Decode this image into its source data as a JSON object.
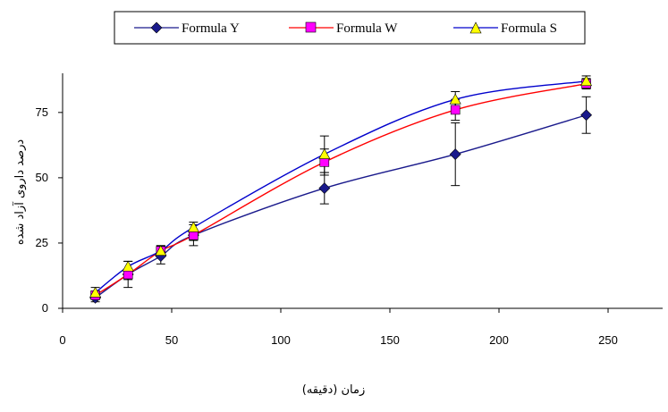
{
  "chart_data": {
    "type": "line",
    "title": "",
    "xlabel": "زمان (دقیقه)",
    "ylabel": "درصد داروی آزاد شده",
    "xlim": [
      0,
      275
    ],
    "ylim": [
      0,
      90
    ],
    "xticks": [
      0,
      50,
      100,
      150,
      200,
      250
    ],
    "yticks": [
      0,
      25,
      50,
      75
    ],
    "x_tick_labels": [
      "0",
      "50",
      "100",
      "150",
      "200",
      "250"
    ],
    "y_tick_labels": [
      "0",
      "25",
      "50",
      "75"
    ],
    "grid": false,
    "legend_position": "top-center",
    "x": [
      15,
      30,
      45,
      60,
      120,
      180,
      240
    ],
    "series": [
      {
        "name": "Formula Y",
        "color": "#1a1a8c",
        "marker": "diamond",
        "marker_fill": "#1a1a8c",
        "values": [
          4,
          13,
          20,
          28,
          46,
          59,
          74
        ],
        "error": [
          1.5,
          5,
          3,
          4,
          6,
          12,
          7
        ]
      },
      {
        "name": "Formula W",
        "color": "#ff0000",
        "marker": "square",
        "marker_fill": "#ff00ff",
        "values": [
          5,
          13,
          22,
          28,
          56,
          76,
          86
        ],
        "error": [
          1.5,
          2,
          2,
          2,
          5,
          4,
          2
        ]
      },
      {
        "name": "Formula S",
        "color": "#0000cc",
        "marker": "triangle",
        "marker_fill": "#ffff00",
        "values": [
          6,
          16,
          22,
          31,
          59,
          80,
          87
        ],
        "error": [
          2,
          2,
          2,
          2,
          7,
          3,
          2
        ]
      }
    ]
  }
}
